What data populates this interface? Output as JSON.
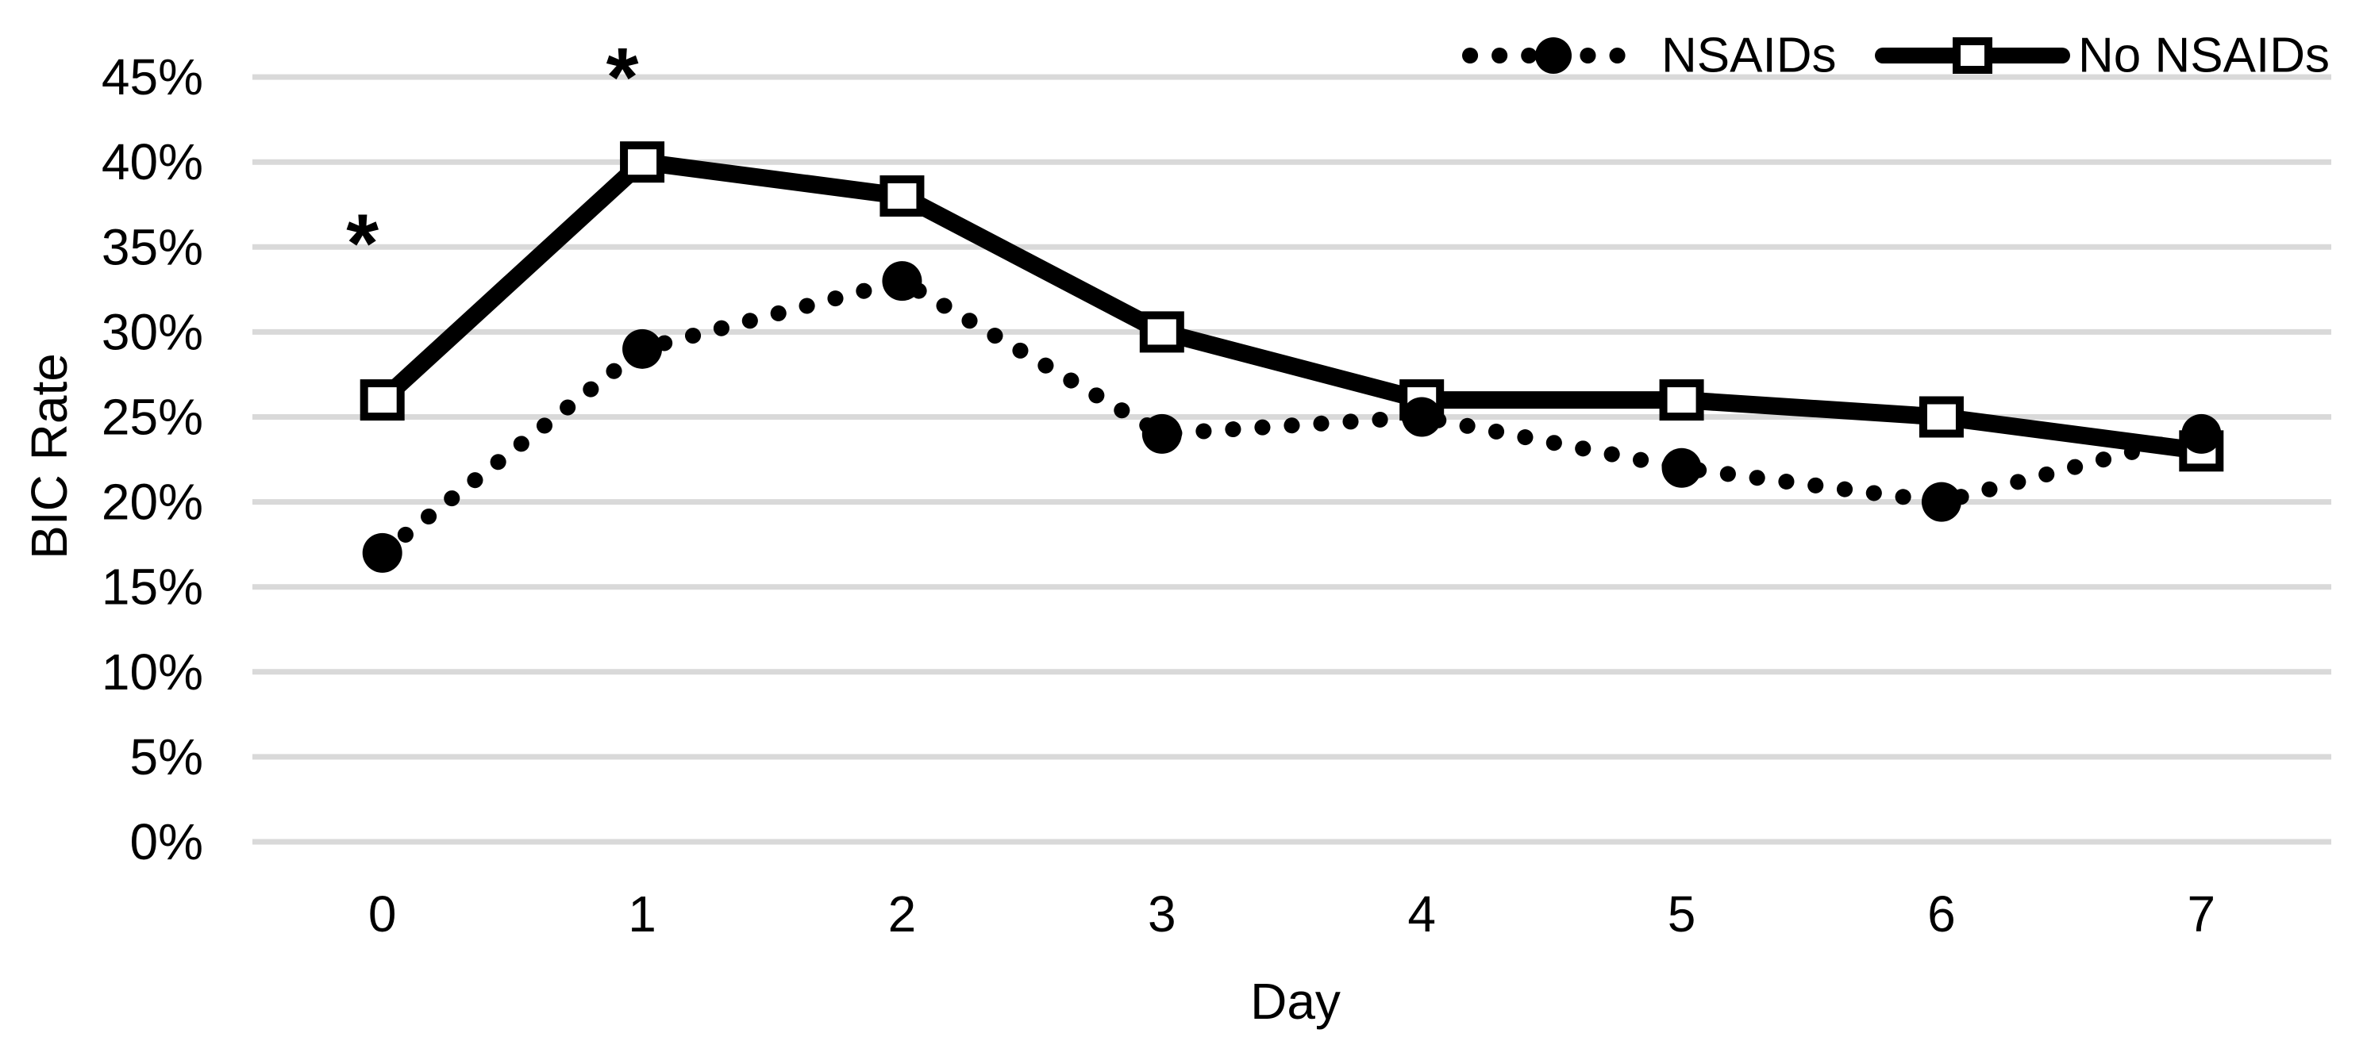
{
  "chart_data": {
    "type": "line",
    "title": "",
    "xlabel": "Day",
    "ylabel": "BIC Rate",
    "categories": [
      "0",
      "1",
      "2",
      "3",
      "4",
      "5",
      "6",
      "7"
    ],
    "series": [
      {
        "name": "NSAIDs",
        "line_style": "dotted",
        "marker": "filled-circle",
        "values": [
          17,
          29,
          33,
          24,
          25,
          22,
          20,
          24
        ]
      },
      {
        "name": "No NSAIDs",
        "line_style": "solid",
        "marker": "open-square",
        "values": [
          26,
          40,
          38,
          30,
          26,
          26,
          25,
          23
        ]
      }
    ],
    "y_ticks": [
      "0%",
      "5%",
      "10%",
      "15%",
      "20%",
      "25%",
      "30%",
      "35%",
      "40%",
      "45%"
    ],
    "y_tick_step": 5,
    "ylim": [
      0,
      45
    ],
    "grid": true,
    "legend_position": "top-right",
    "annotations": [
      {
        "text": "*",
        "category_index": 0,
        "y_pct": 36.1
      },
      {
        "text": "*",
        "category_index": 1,
        "y_pct": 45.9
      }
    ]
  },
  "colors": {
    "series": "#000000",
    "grid": "#d9d9d9",
    "background": "#ffffff"
  }
}
